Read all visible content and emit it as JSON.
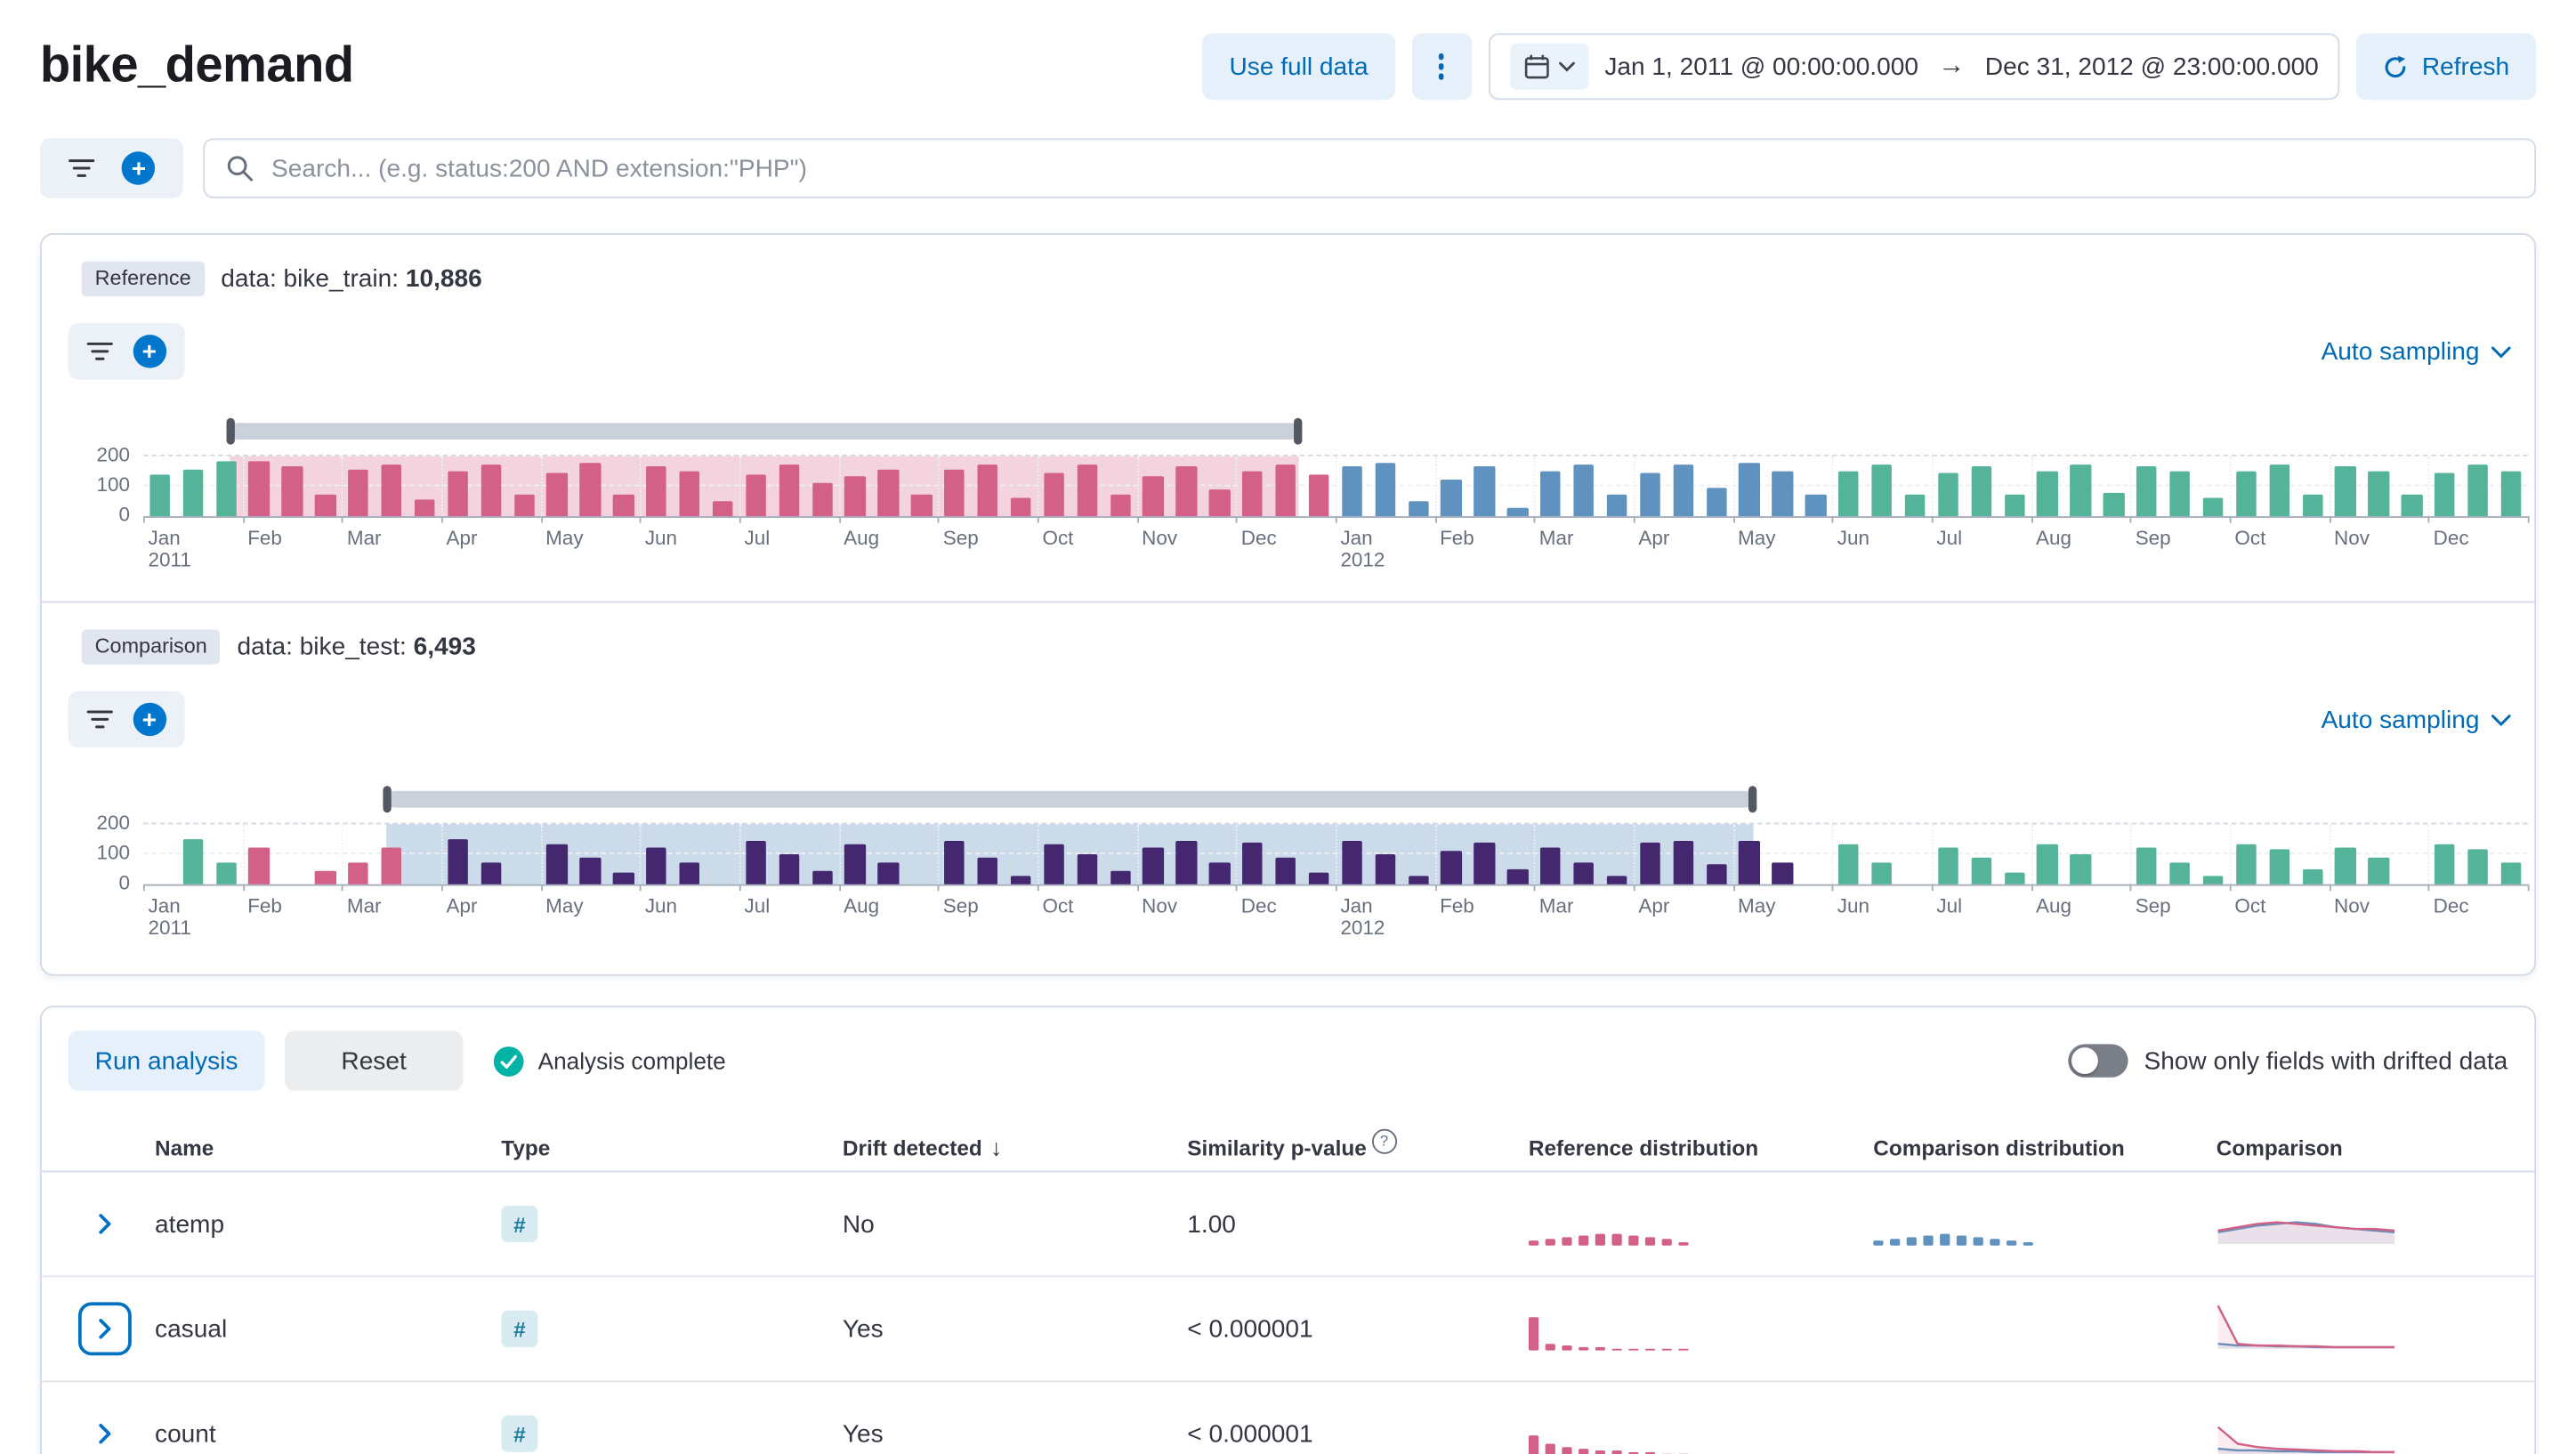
{
  "header": {
    "title": "bike_demand",
    "use_full_data_label": "Use full data",
    "date_start": "Jan 1, 2011 @ 00:00:00.000",
    "date_end": "Dec 31, 2012 @ 23:00:00.000",
    "refresh_label": "Refresh"
  },
  "search": {
    "placeholder": "Search... (e.g. status:200 AND extension:\"PHP\")"
  },
  "reference": {
    "badge": "Reference",
    "data_label": "data: bike_train:",
    "count": "10,886",
    "sampling_label": "Auto sampling"
  },
  "comparison": {
    "badge": "Comparison",
    "data_label": "data: bike_test:",
    "count": "6,493",
    "sampling_label": "Auto sampling"
  },
  "analysis": {
    "run_label": "Run analysis",
    "reset_label": "Reset",
    "status": "Analysis complete",
    "toggle_label": "Show only fields with drifted data"
  },
  "table": {
    "columns": [
      "Name",
      "Type",
      "Drift detected",
      "Similarity p-value",
      "Reference distribution",
      "Comparison distribution",
      "Comparison"
    ],
    "rows": [
      {
        "name": "atemp",
        "type": "#",
        "drift": "No",
        "pvalue": "1.00",
        "focused": false,
        "reference_distribution": [
          3,
          4,
          5,
          6,
          7,
          7,
          6,
          5,
          4,
          2
        ],
        "comparison_distribution": [
          3,
          4,
          5,
          6,
          7,
          6,
          5,
          4,
          3,
          2
        ],
        "comparison_overlay": {
          "ref": [
            8,
            10,
            12,
            13,
            12,
            11,
            10,
            9,
            9,
            8
          ],
          "comp": [
            7,
            9,
            11,
            12,
            13,
            12,
            10,
            9,
            8,
            7
          ]
        }
      },
      {
        "name": "casual",
        "type": "#",
        "drift": "Yes",
        "pvalue": "< 0.000001",
        "focused": true,
        "reference_distribution": [
          20,
          4,
          3,
          2,
          2,
          1.5,
          1.5,
          1,
          1,
          1
        ],
        "comparison_distribution": [],
        "comparison_overlay": {
          "ref": [
            26,
            3,
            2,
            2,
            1.5,
            1.5,
            1,
            1,
            1,
            1
          ],
          "comp": [
            3,
            2,
            2,
            1.5,
            1.5,
            1,
            1,
            1,
            1,
            1
          ]
        }
      },
      {
        "name": "count",
        "type": "#",
        "drift": "Yes",
        "pvalue": "< 0.000001",
        "focused": false,
        "reference_distribution": [
          12,
          7,
          5,
          4,
          3,
          3,
          2,
          2,
          1.5,
          1
        ],
        "comparison_distribution": [],
        "comparison_overlay": {
          "ref": [
            16,
            6,
            4,
            3,
            2.5,
            2,
            1.5,
            1.5,
            1,
            1
          ],
          "comp": [
            3,
            2,
            2,
            1.5,
            1.5,
            1,
            1,
            1,
            1,
            1
          ]
        }
      }
    ]
  },
  "mini_colors": {
    "reference": "#D36086",
    "comparison": "#6092C0"
  },
  "chart_data": [
    {
      "name": "reference-timeline",
      "type": "bar",
      "title": "Reference data: bike_train document counts over time",
      "ylim": [
        0,
        200
      ],
      "yticks": [
        200,
        100,
        0
      ],
      "months": [
        "Jan|2011",
        "Feb",
        "Mar",
        "Apr",
        "May",
        "Jun",
        "Jul",
        "Aug",
        "Sep",
        "Oct",
        "Nov",
        "Dec",
        "Jan|2012",
        "Feb",
        "Mar",
        "Apr",
        "May",
        "Jun",
        "Jul",
        "Aug",
        "Sep",
        "Oct",
        "Nov",
        "Dec"
      ],
      "selection": {
        "from": 0.87,
        "to": 11.63
      },
      "selection_color": "rgba(211,96,134,0.28)",
      "colors": {
        "g": "#54B399",
        "p": "#D36086",
        "b": "#6092C0",
        "u": "#44276F"
      },
      "bars": [
        [
          140,
          "g"
        ],
        [
          155,
          "g"
        ],
        [
          185,
          "g"
        ],
        [
          185,
          "p"
        ],
        [
          165,
          "p"
        ],
        [
          70,
          "p"
        ],
        [
          155,
          "p"
        ],
        [
          175,
          "p"
        ],
        [
          55,
          "p"
        ],
        [
          150,
          "p"
        ],
        [
          170,
          "p"
        ],
        [
          75,
          "p"
        ],
        [
          145,
          "p"
        ],
        [
          180,
          "p"
        ],
        [
          70,
          "p"
        ],
        [
          165,
          "p"
        ],
        [
          150,
          "p"
        ],
        [
          50,
          "p"
        ],
        [
          140,
          "p"
        ],
        [
          170,
          "p"
        ],
        [
          110,
          "p"
        ],
        [
          135,
          "p"
        ],
        [
          155,
          "p"
        ],
        [
          75,
          "p"
        ],
        [
          155,
          "p"
        ],
        [
          170,
          "p"
        ],
        [
          60,
          "p"
        ],
        [
          145,
          "p"
        ],
        [
          175,
          "p"
        ],
        [
          75,
          "p"
        ],
        [
          135,
          "p"
        ],
        [
          165,
          "p"
        ],
        [
          90,
          "p"
        ],
        [
          150,
          "p"
        ],
        [
          170,
          "p"
        ],
        [
          140,
          "p"
        ],
        [
          165,
          "b"
        ],
        [
          180,
          "b"
        ],
        [
          50,
          "b"
        ],
        [
          120,
          "b"
        ],
        [
          165,
          "b"
        ],
        [
          30,
          "b"
        ],
        [
          150,
          "b"
        ],
        [
          170,
          "b"
        ],
        [
          75,
          "b"
        ],
        [
          145,
          "b"
        ],
        [
          175,
          "b"
        ],
        [
          95,
          "b"
        ],
        [
          180,
          "b"
        ],
        [
          150,
          "b"
        ],
        [
          75,
          "b"
        ],
        [
          150,
          "g"
        ],
        [
          170,
          "g"
        ],
        [
          75,
          "g"
        ],
        [
          145,
          "g"
        ],
        [
          165,
          "g"
        ],
        [
          70,
          "g"
        ],
        [
          150,
          "g"
        ],
        [
          170,
          "g"
        ],
        [
          80,
          "g"
        ],
        [
          165,
          "g"
        ],
        [
          150,
          "g"
        ],
        [
          60,
          "g"
        ],
        [
          150,
          "g"
        ],
        [
          175,
          "g"
        ],
        [
          70,
          "g"
        ],
        [
          165,
          "g"
        ],
        [
          150,
          "g"
        ],
        [
          75,
          "g"
        ],
        [
          145,
          "g"
        ],
        [
          170,
          "g"
        ],
        [
          150,
          "g"
        ]
      ]
    },
    {
      "name": "comparison-timeline",
      "type": "bar",
      "title": "Comparison data: bike_test document counts over time",
      "ylim": [
        0,
        200
      ],
      "yticks": [
        200,
        100,
        0
      ],
      "months": [
        "Jan|2011",
        "Feb",
        "Mar",
        "Apr",
        "May",
        "Jun",
        "Jul",
        "Aug",
        "Sep",
        "Oct",
        "Nov",
        "Dec",
        "Jan|2012",
        "Feb",
        "Mar",
        "Apr",
        "May",
        "Jun",
        "Jul",
        "Aug",
        "Sep",
        "Oct",
        "Nov",
        "Dec"
      ],
      "selection": {
        "from": 2.45,
        "to": 16.2
      },
      "selection_color": "rgba(96,146,192,0.33)",
      "colors": {
        "g": "#54B399",
        "p": "#D36086",
        "b": "#6092C0",
        "u": "#44276F"
      },
      "bars": [
        [
          0,
          "g"
        ],
        [
          150,
          "g"
        ],
        [
          75,
          "g"
        ],
        [
          120,
          "p"
        ],
        [
          0,
          "p"
        ],
        [
          45,
          "p"
        ],
        [
          75,
          "p"
        ],
        [
          120,
          "p"
        ],
        [
          0,
          "p"
        ],
        [
          150,
          "u"
        ],
        [
          75,
          "u"
        ],
        [
          0,
          "u"
        ],
        [
          135,
          "u"
        ],
        [
          90,
          "u"
        ],
        [
          40,
          "u"
        ],
        [
          120,
          "u"
        ],
        [
          75,
          "u"
        ],
        [
          0,
          "u"
        ],
        [
          145,
          "u"
        ],
        [
          100,
          "u"
        ],
        [
          45,
          "u"
        ],
        [
          135,
          "u"
        ],
        [
          75,
          "u"
        ],
        [
          0,
          "u"
        ],
        [
          145,
          "u"
        ],
        [
          90,
          "u"
        ],
        [
          30,
          "u"
        ],
        [
          135,
          "u"
        ],
        [
          100,
          "u"
        ],
        [
          45,
          "u"
        ],
        [
          120,
          "u"
        ],
        [
          145,
          "u"
        ],
        [
          70,
          "u"
        ],
        [
          140,
          "u"
        ],
        [
          90,
          "u"
        ],
        [
          40,
          "u"
        ],
        [
          145,
          "u"
        ],
        [
          100,
          "u"
        ],
        [
          30,
          "u"
        ],
        [
          110,
          "u"
        ],
        [
          140,
          "u"
        ],
        [
          50,
          "u"
        ],
        [
          125,
          "u"
        ],
        [
          75,
          "u"
        ],
        [
          30,
          "u"
        ],
        [
          140,
          "u"
        ],
        [
          145,
          "u"
        ],
        [
          65,
          "u"
        ],
        [
          145,
          "u"
        ],
        [
          75,
          "u"
        ],
        [
          0,
          "u"
        ],
        [
          135,
          "g"
        ],
        [
          75,
          "g"
        ],
        [
          0,
          "g"
        ],
        [
          125,
          "g"
        ],
        [
          90,
          "g"
        ],
        [
          40,
          "g"
        ],
        [
          135,
          "g"
        ],
        [
          100,
          "g"
        ],
        [
          0,
          "g"
        ],
        [
          120,
          "g"
        ],
        [
          75,
          "g"
        ],
        [
          30,
          "g"
        ],
        [
          135,
          "g"
        ],
        [
          115,
          "g"
        ],
        [
          50,
          "g"
        ],
        [
          125,
          "g"
        ],
        [
          90,
          "g"
        ],
        [
          0,
          "g"
        ],
        [
          135,
          "g"
        ],
        [
          115,
          "g"
        ],
        [
          70,
          "g"
        ]
      ]
    }
  ]
}
